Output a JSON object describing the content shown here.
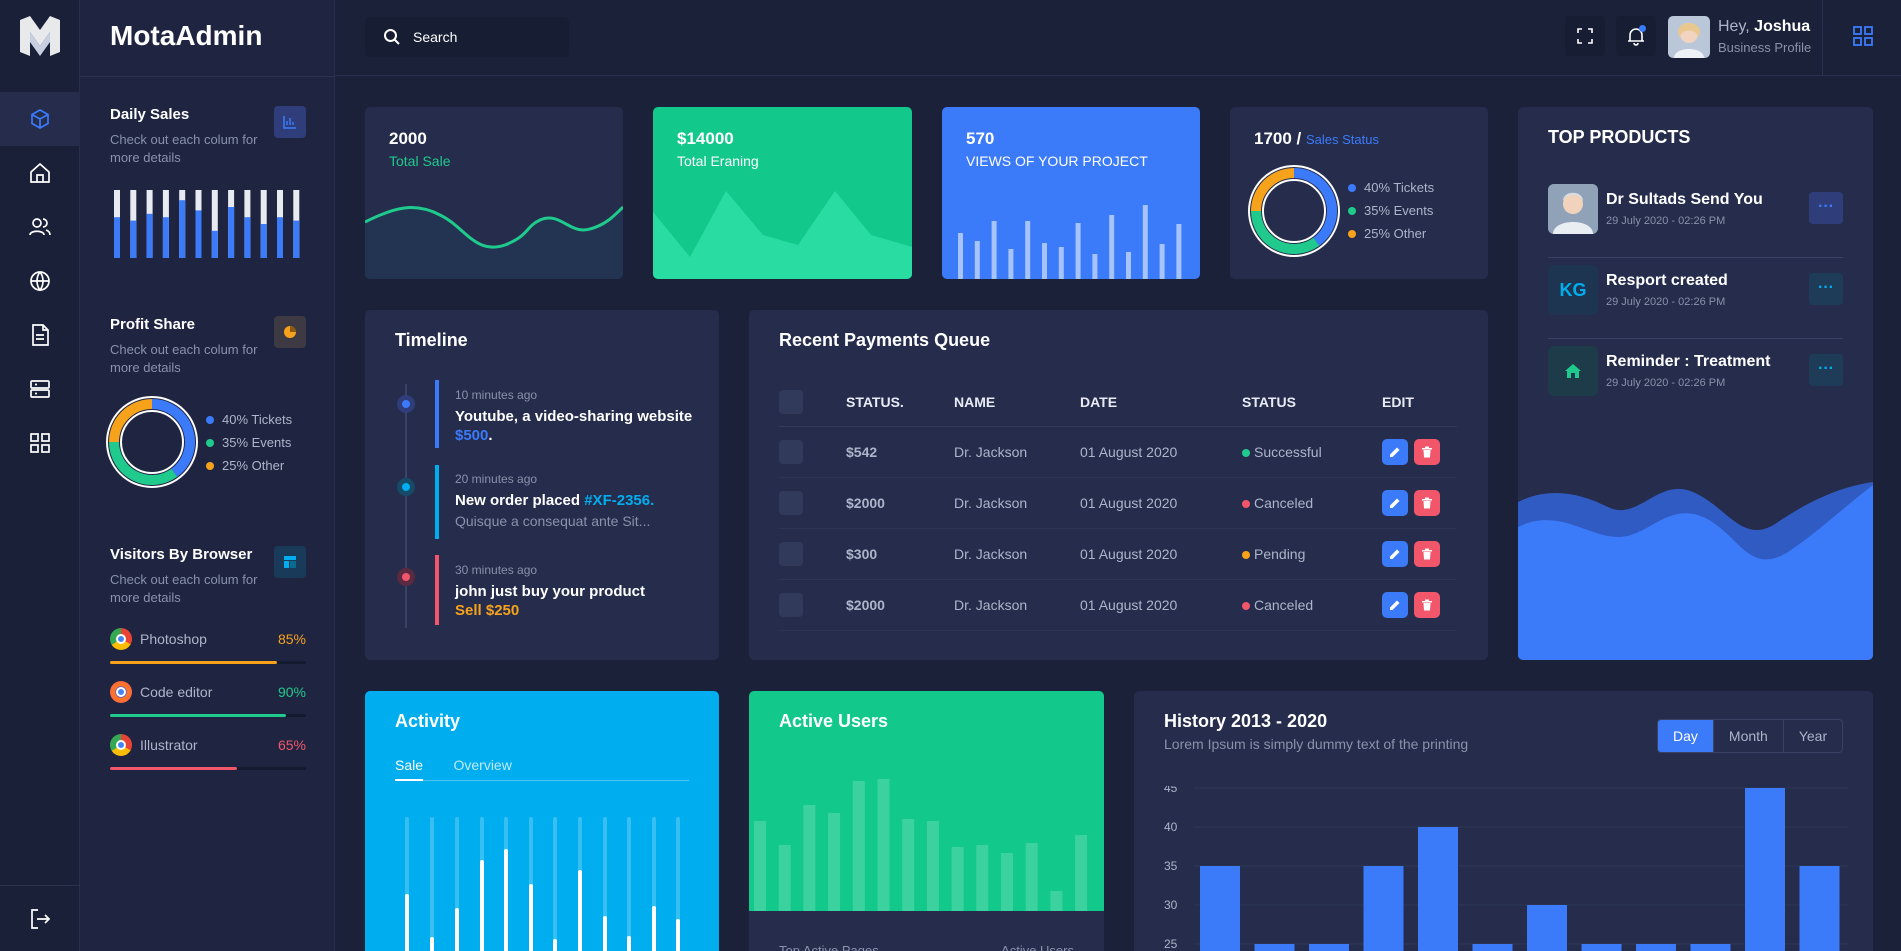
{
  "app": {
    "brand": "MotaAdmin"
  },
  "search": {
    "placeholder": "Search"
  },
  "user": {
    "greeting": "Hey,",
    "name": "Joshua",
    "role": "Business Profile"
  },
  "sidebar": {
    "daily_sales": {
      "title": "Daily Sales",
      "desc": "Check out each colum for more details",
      "bars": [
        0.6,
        0.55,
        0.65,
        0.6,
        0.85,
        0.7,
        0.4,
        0.75,
        0.6,
        0.5,
        0.6,
        0.55
      ]
    },
    "profit_share": {
      "title": "Profit Share",
      "desc": "Check out each colum for more details",
      "legend": [
        {
          "label": "40% Tickets",
          "color": "#3b7bfa",
          "value": 40
        },
        {
          "label": "35% Events",
          "color": "#1fca8c",
          "value": 35
        },
        {
          "label": "25% Other",
          "color": "#f7a21b",
          "value": 25
        }
      ]
    },
    "visitors": {
      "title": "Visitors By Browser",
      "desc": "Check out each colum for more details",
      "browsers": [
        {
          "name": "Photoshop",
          "percent": "85%",
          "value": 0.85,
          "color": "#f7a21b",
          "icon": "chrome-icon"
        },
        {
          "name": "Code editor",
          "percent": "90%",
          "value": 0.9,
          "color": "#1fca8c",
          "icon": "firefox-icon"
        },
        {
          "name": "Illustrator",
          "percent": "65%",
          "value": 0.65,
          "color": "#f2566a",
          "icon": "chrome-icon"
        }
      ]
    }
  },
  "stats": {
    "total_sale": {
      "value": "2000",
      "label": "Total Sale"
    },
    "total_earning": {
      "value": "$14000",
      "label": "Total Eraning"
    },
    "views": {
      "value": "570",
      "label": "VIEWS OF YOUR PROJECT",
      "bars": [
        0.46,
        0.38,
        0.58,
        0.3,
        0.58,
        0.36,
        0.32,
        0.56,
        0.25,
        0.64,
        0.27,
        0.74,
        0.35,
        0.55
      ]
    },
    "sales_status": {
      "value": "1700 /",
      "label": "Sales Status",
      "legend": [
        {
          "label": "40% Tickets",
          "color": "#3b7bfa",
          "value": 40
        },
        {
          "label": "35% Events",
          "color": "#1fca8c",
          "value": 35
        },
        {
          "label": "25% Other",
          "color": "#f7a21b",
          "value": 25
        }
      ]
    }
  },
  "top_products": {
    "title": "TOP PRODUCTS",
    "items": [
      {
        "title": "Dr Sultads Send You",
        "date": "29 July 2020 - 02:26 PM"
      },
      {
        "title": "Resport created",
        "date": "29 July 2020 - 02:26 PM",
        "badge": "KG"
      },
      {
        "title": "Reminder : Treatment",
        "date": "29 July 2020 - 02:26 PM"
      }
    ],
    "more": "···"
  },
  "timeline": {
    "title": "Timeline",
    "items": [
      {
        "time": "10 minutes ago",
        "text": "Youtube, a video-sharing website ",
        "highlight": "$500",
        "tail": ".",
        "sub": ""
      },
      {
        "time": "20 minutes ago",
        "text": "New order placed ",
        "highlight": "#XF-2356.",
        "tail": "",
        "sub": "Quisque a consequat ante Sit..."
      },
      {
        "time": "30 minutes ago",
        "text": "john just buy your product ",
        "highlight": "Sell $250",
        "tail": "",
        "sub": ""
      }
    ]
  },
  "payments": {
    "title": "Recent Payments Queue",
    "headers": [
      "STATUS.",
      "NAME",
      "DATE",
      "STATUS",
      "EDIT"
    ],
    "rows": [
      {
        "amount": "$542",
        "name": "Dr. Jackson",
        "date": "01 August 2020",
        "status": "Successful",
        "status_color": "#1fca8c"
      },
      {
        "amount": "$2000",
        "name": "Dr. Jackson",
        "date": "01 August 2020",
        "status": "Canceled",
        "status_color": "#f2566a"
      },
      {
        "amount": "$300",
        "name": "Dr. Jackson",
        "date": "01 August 2020",
        "status": "Pending",
        "status_color": "#f7a21b"
      },
      {
        "amount": "$2000",
        "name": "Dr. Jackson",
        "date": "01 August 2020",
        "status": "Canceled",
        "status_color": "#f2566a"
      }
    ]
  },
  "activity": {
    "title": "Activity",
    "tabs": [
      "Sale",
      "Overview"
    ]
  },
  "active_users": {
    "title": "Active Users",
    "footer_left": "Top Active Pages",
    "footer_right": "Active Users",
    "bars": [
      0.45,
      0.33,
      0.53,
      0.49,
      0.65,
      0.66,
      0.46,
      0.45,
      0.32,
      0.33,
      0.29,
      0.34,
      0.1,
      0.38
    ]
  },
  "history": {
    "title": "History 2013 - 2020",
    "subtitle": "Lorem Ipsum is simply dummy text of the printing",
    "range_tabs": [
      "Day",
      "Month",
      "Year"
    ],
    "active_range": "Day",
    "chart_data": {
      "type": "bar",
      "title": "History 2013 - 2020",
      "ylim": [
        25,
        45
      ],
      "yticks": [
        "45",
        "40",
        "35",
        "30",
        "25"
      ],
      "values": [
        35,
        25,
        25,
        35,
        40,
        25,
        30,
        25,
        25,
        25,
        45,
        35
      ]
    }
  },
  "colors": {
    "accent_blue": "#3b7bfa",
    "accent_green": "#1fca8c",
    "accent_orange": "#f7a21b",
    "accent_red": "#f2566a",
    "accent_cyan": "#00adef"
  }
}
